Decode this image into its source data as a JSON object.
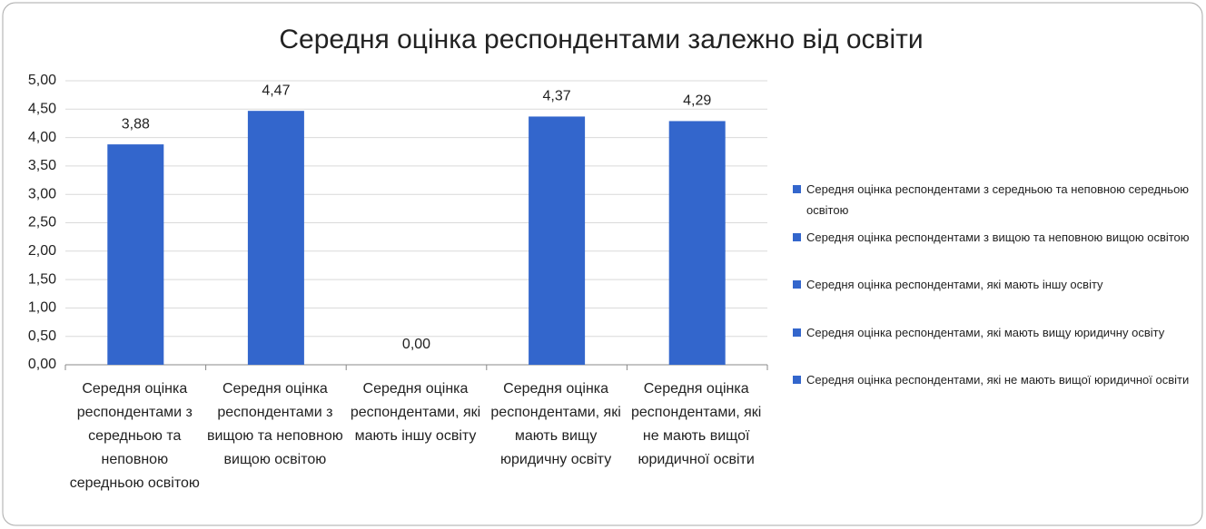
{
  "chart_data": {
    "type": "bar",
    "title": "Середня оцінка респондентами залежно від освіти",
    "categories": [
      "Середня оцінка респондентами з середньою та неповною середньою освітою",
      "Середня оцінка респондентами з вищою та неповною вищою освітою",
      "Середня оцінка респондентами, які мають іншу освіту",
      "Середня оцінка респондентами, які мають вищу юридичну освіту",
      "Середня оцінка респондентами, які не мають вищої юридичної освіти"
    ],
    "values": [
      3.88,
      4.47,
      0,
      4.37,
      4.29
    ],
    "value_labels": [
      "3,88",
      "4,47",
      "0,00",
      "4,37",
      "4,29"
    ],
    "color": "#3366cc",
    "ylim": [
      0,
      5
    ],
    "yticks": [
      {
        "value": 0,
        "label": "0,00"
      },
      {
        "value": 0.5,
        "label": "0,50"
      },
      {
        "value": 1,
        "label": "1,00"
      },
      {
        "value": 1.5,
        "label": "1,50"
      },
      {
        "value": 2,
        "label": "2,00"
      },
      {
        "value": 2.5,
        "label": "2,50"
      },
      {
        "value": 3,
        "label": "3,00"
      },
      {
        "value": 3.5,
        "label": "3,50"
      },
      {
        "value": 4,
        "label": "4,00"
      },
      {
        "value": 4.5,
        "label": "4,50"
      },
      {
        "value": 5,
        "label": "5,00"
      }
    ],
    "grid": true,
    "legend": "right"
  }
}
